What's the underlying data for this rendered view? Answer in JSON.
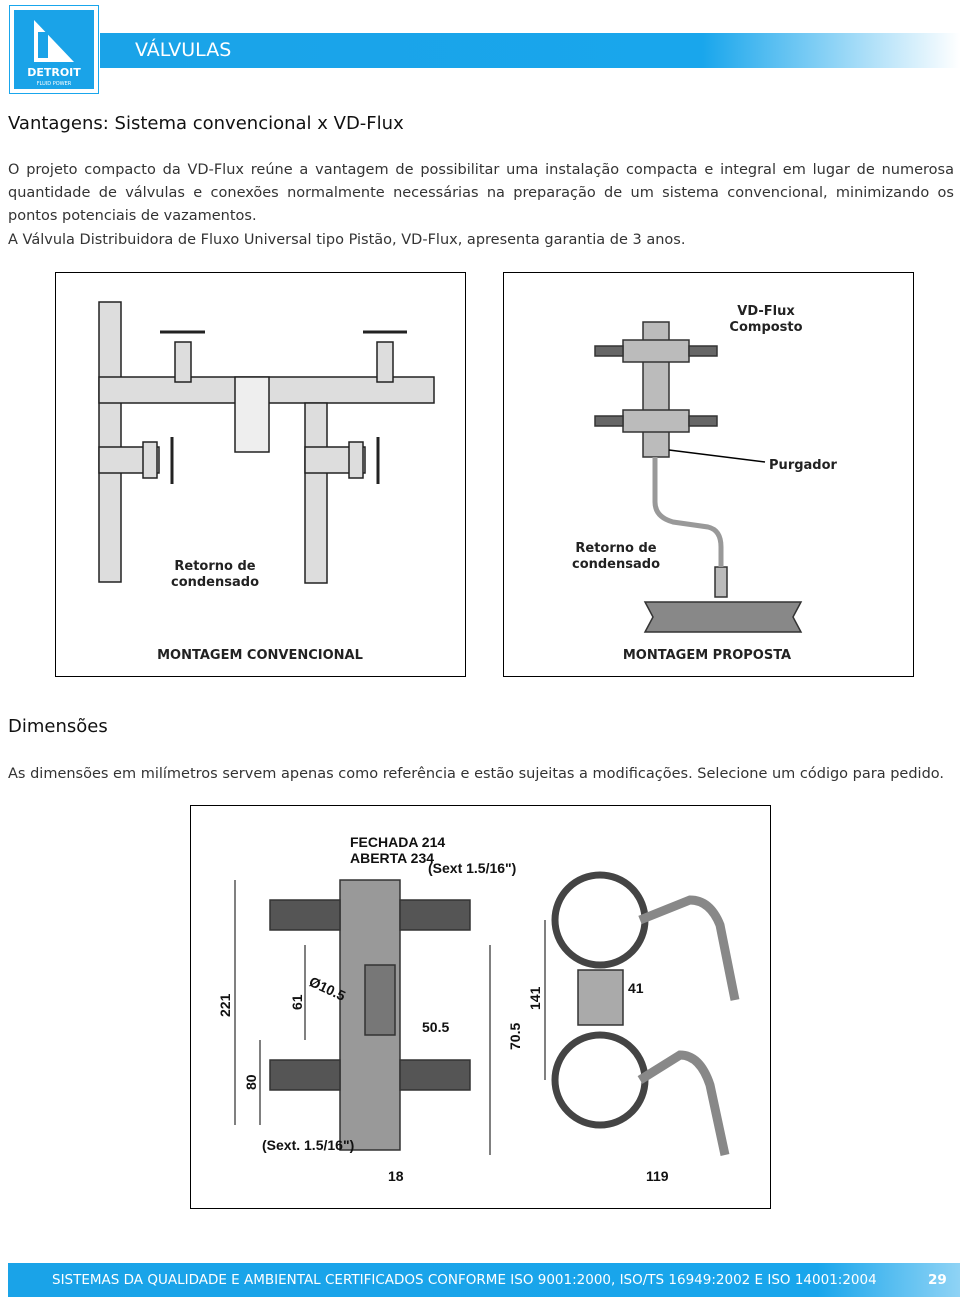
{
  "header": {
    "logo_text": "DETROIT",
    "logo_subtext": "FLUID POWER",
    "title": "VÁLVULAS"
  },
  "section1": {
    "heading": "Vantagens: Sistema convencional x VD-Flux",
    "paragraphs": [
      "O projeto compacto da VD-Flux reúne a vantagem de possibilitar uma instalação compacta e integral em lugar de numerosa quantidade de válvulas e conexões normalmente necessárias na preparação de um sistema convencional, minimizando os pontos potenciais de vazamentos.",
      "A Válvula Distribuidora de Fluxo Universal tipo Pistão, VD-Flux, apresenta garantia de 3 anos."
    ]
  },
  "figures": {
    "conventional": {
      "label": [
        "Retorno de",
        "condensado"
      ],
      "caption": "MONTAGEM CONVENCIONAL"
    },
    "proposed": {
      "vd_flux": [
        "VD-Flux",
        "Composto"
      ],
      "purgador": "Purgador",
      "label": [
        "Retorno de",
        "condensado"
      ],
      "caption": "MONTAGEM PROPOSTA"
    }
  },
  "section2": {
    "heading": "Dimensões",
    "paragraph": "As dimensões em milímetros servem apenas como referência e estão sujeitas a modificações. Selecione um código para pedido."
  },
  "dimension_drawing": {
    "closed": "FECHADA 214",
    "open": "ABERTA 234",
    "hex_top": "(Sext 1.5/16\")",
    "diameter": "Ø10.5",
    "dim_61": "61",
    "dim_221": "221",
    "dim_50_5": "50.5",
    "dim_70_5": "70.5",
    "dim_141": "141",
    "dim_41": "41",
    "dim_80": "80",
    "hex_bottom": "(Sext. 1.5/16\")",
    "dim_18": "18",
    "dim_119": "119"
  },
  "footer": {
    "text": "SISTEMAS DA QUALIDADE E AMBIENTAL CERTIFICADOS CONFORME ISO 9001:2000, ISO/TS 16949:2002 E ISO 14001:2004",
    "page": "29"
  }
}
